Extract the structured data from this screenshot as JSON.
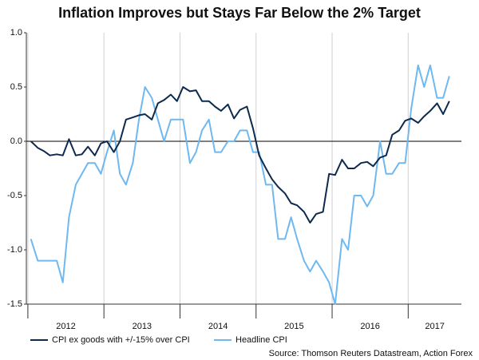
{
  "chart_data": {
    "type": "line",
    "title": "Inflation Improves but Stays Far Below the 2% Target",
    "source": "Source: Thomson Reuters Datastream, Action Forex",
    "x": [
      2012.04,
      2012.13,
      2012.21,
      2012.29,
      2012.38,
      2012.46,
      2012.54,
      2012.63,
      2012.71,
      2012.79,
      2012.88,
      2012.96,
      2013.04,
      2013.13,
      2013.21,
      2013.29,
      2013.38,
      2013.46,
      2013.54,
      2013.63,
      2013.71,
      2013.79,
      2013.88,
      2013.96,
      2014.04,
      2014.13,
      2014.21,
      2014.29,
      2014.38,
      2014.46,
      2014.54,
      2014.63,
      2014.71,
      2014.79,
      2014.88,
      2014.96,
      2015.04,
      2015.13,
      2015.21,
      2015.29,
      2015.38,
      2015.46,
      2015.54,
      2015.63,
      2015.71,
      2015.79,
      2015.88,
      2015.96,
      2016.04,
      2016.13,
      2016.21,
      2016.29,
      2016.38,
      2016.46,
      2016.54,
      2016.63,
      2016.71,
      2016.79,
      2016.88,
      2016.96,
      2017.04,
      2017.13,
      2017.21,
      2017.29,
      2017.38,
      2017.46,
      2017.54
    ],
    "series": [
      {
        "name": "CPI ex goods with +/-15% over CPI",
        "color": "#0d2a4e",
        "values": [
          0.0,
          -0.06,
          -0.09,
          -0.13,
          -0.12,
          -0.13,
          0.02,
          -0.13,
          -0.12,
          -0.05,
          -0.13,
          -0.02,
          0.0,
          -0.1,
          0.0,
          0.2,
          0.22,
          0.24,
          0.25,
          0.2,
          0.35,
          0.38,
          0.43,
          0.37,
          0.5,
          0.46,
          0.47,
          0.37,
          0.37,
          0.32,
          0.28,
          0.34,
          0.21,
          0.29,
          0.32,
          0.12,
          -0.13,
          -0.25,
          -0.35,
          -0.42,
          -0.48,
          -0.57,
          -0.59,
          -0.65,
          -0.75,
          -0.67,
          -0.65,
          -0.3,
          -0.31,
          -0.17,
          -0.25,
          -0.25,
          -0.2,
          -0.19,
          -0.23,
          -0.15,
          -0.13,
          0.06,
          0.1,
          0.19,
          0.21,
          0.17,
          0.23,
          0.28,
          0.35,
          0.25,
          0.37
        ]
      },
      {
        "name": "Headline CPI",
        "color": "#6fb8f0",
        "values": [
          -0.9,
          -1.1,
          -1.1,
          -1.1,
          -1.1,
          -1.3,
          -0.7,
          -0.4,
          -0.3,
          -0.2,
          -0.2,
          -0.3,
          -0.1,
          0.1,
          -0.3,
          -0.4,
          -0.2,
          0.2,
          0.5,
          0.4,
          0.2,
          0.0,
          0.2,
          0.2,
          0.2,
          -0.2,
          -0.1,
          0.1,
          0.2,
          -0.1,
          -0.1,
          0.0,
          0.0,
          0.1,
          0.1,
          -0.1,
          -0.1,
          -0.4,
          -0.4,
          -0.9,
          -0.9,
          -0.7,
          -0.9,
          -1.1,
          -1.2,
          -1.1,
          -1.2,
          -1.3,
          -1.5,
          -0.9,
          -1.0,
          -0.5,
          -0.5,
          -0.6,
          -0.5,
          0.0,
          -0.3,
          -0.3,
          -0.2,
          -0.2,
          0.3,
          0.7,
          0.5,
          0.7,
          0.4,
          0.4,
          0.6
        ]
      }
    ],
    "xlim": [
      2011.98,
      2017.7
    ],
    "xticks": [
      2012,
      2013,
      2014,
      2015,
      2016,
      2017
    ],
    "ylim": [
      -1.5,
      1.0
    ],
    "yticks": [
      {
        "value": 1,
        "label": "1.0"
      },
      0.5,
      {
        "value": 0,
        "label": "0.0"
      },
      -0.5,
      {
        "value": -1,
        "label": "-1.0"
      },
      -1.5
    ],
    "legend": "bottom"
  }
}
